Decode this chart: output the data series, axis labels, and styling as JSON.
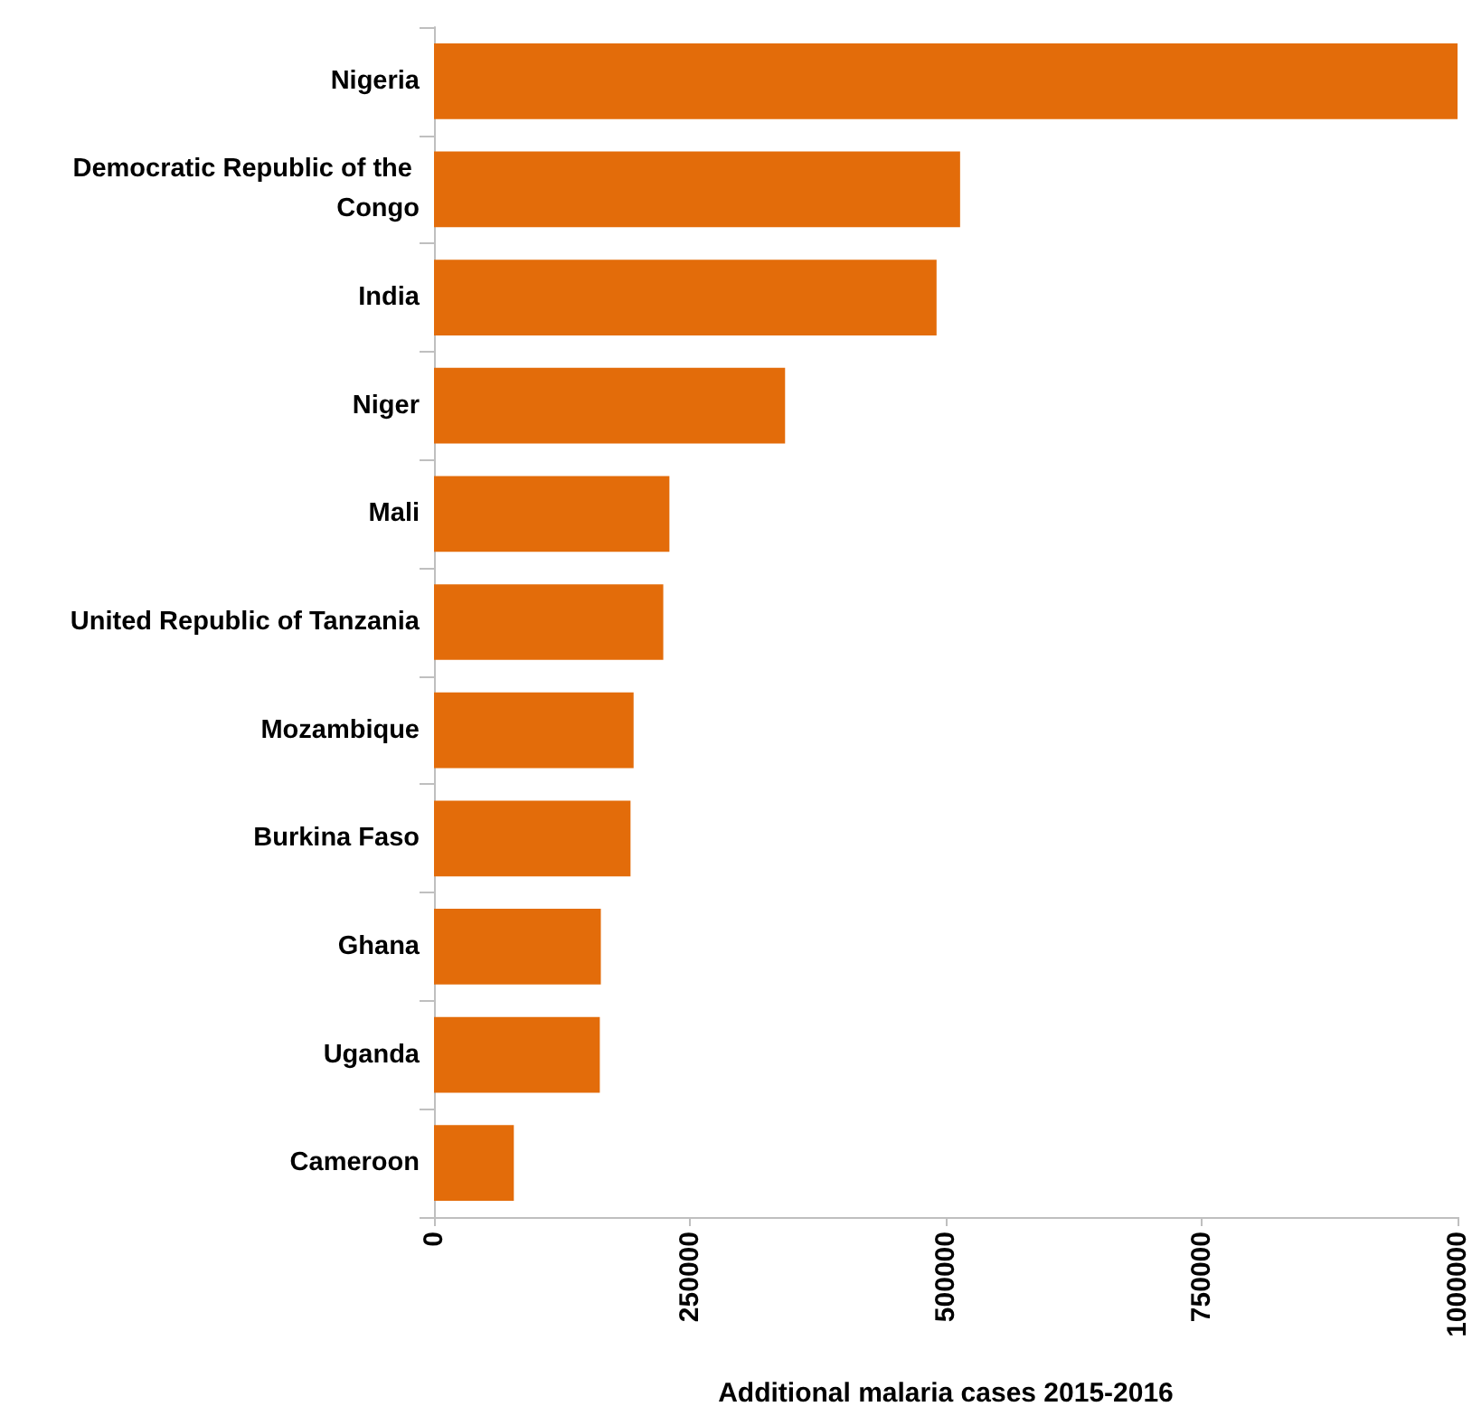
{
  "chart_data": {
    "type": "bar",
    "orientation": "horizontal",
    "xlabel": "Additional malaria cases 2015-2016",
    "categories": [
      "Nigeria",
      "Democratic Republic of the Congo",
      "India",
      "Niger",
      "Mali",
      "United Republic of Tanzania",
      "Mozambique",
      "Burkina Faso",
      "Ghana",
      "Uganda",
      "Cameroon"
    ],
    "values": [
      1000000,
      514000,
      491000,
      343000,
      230000,
      224000,
      195000,
      192000,
      163000,
      162000,
      78000
    ],
    "color": "#e36c0a",
    "xlim": [
      0,
      1000000
    ],
    "xticks": [
      0,
      250000,
      500000,
      750000,
      1000000
    ],
    "grid": false
  }
}
